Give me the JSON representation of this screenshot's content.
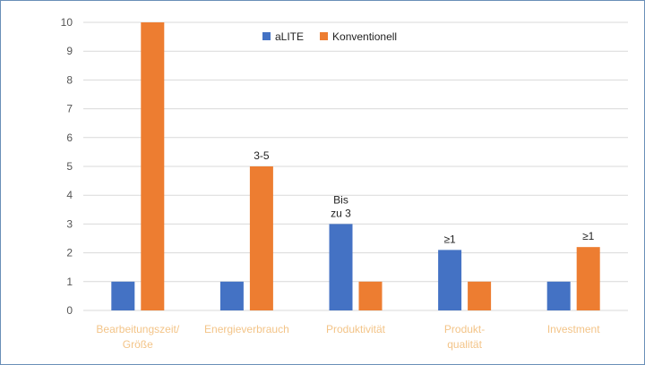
{
  "chart_data": {
    "type": "bar",
    "categories": [
      "Bearbeitungszeit/ Größe",
      "Energieverbrauch",
      "Produktivität",
      "Produkt- qualität",
      "Investment"
    ],
    "category_lines": [
      [
        "Bearbeitungszeit/",
        "Größe"
      ],
      [
        "Energieverbrauch"
      ],
      [
        "Produktivität"
      ],
      [
        "Produkt-",
        "qualität"
      ],
      [
        "Investment"
      ]
    ],
    "series": [
      {
        "name": "aLITE",
        "color": "#4472c4",
        "values": [
          1,
          1,
          3,
          2.1,
          1
        ]
      },
      {
        "name": "Konventionell",
        "color": "#ed7d31",
        "values": [
          10,
          5,
          1,
          1,
          2.2
        ]
      }
    ],
    "data_labels": [
      {
        "series": 1,
        "category": 1,
        "lines": [
          "3-5"
        ]
      },
      {
        "series": 0,
        "category": 2,
        "lines": [
          "Bis",
          "zu 3"
        ]
      },
      {
        "series": 0,
        "category": 3,
        "lines": [
          "≥1"
        ]
      },
      {
        "series": 1,
        "category": 4,
        "lines": [
          "≥1"
        ]
      }
    ],
    "ylim": [
      0,
      10
    ],
    "yticks": [
      0,
      1,
      2,
      3,
      4,
      5,
      6,
      7,
      8,
      9,
      10
    ],
    "grid": true,
    "legend": "top-center",
    "title": "",
    "xlabel": "",
    "ylabel": "",
    "colors": {
      "grid": "#d9d9d9",
      "category_label": "#f3c488"
    }
  }
}
